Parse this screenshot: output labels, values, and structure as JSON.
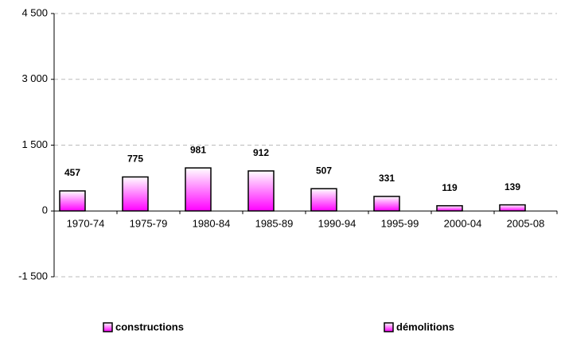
{
  "chart_data": {
    "type": "bar",
    "categories": [
      "1970-74",
      "1975-79",
      "1980-84",
      "1985-89",
      "1990-94",
      "1995-99",
      "2000-04",
      "2005-08"
    ],
    "series": [
      {
        "name": "constructions",
        "color": "#ff00ff",
        "values": [
          457,
          775,
          981,
          912,
          507,
          331,
          119,
          139
        ]
      },
      {
        "name": "démolitions",
        "color": "#ff00ff",
        "values": [
          0,
          0,
          0,
          0,
          0,
          0,
          0,
          0
        ]
      }
    ],
    "ylim": [
      -1500,
      4500
    ],
    "yticks": [
      {
        "value": -1500,
        "label": "-1 500"
      },
      0,
      {
        "value": 1500,
        "label": "1 500"
      },
      {
        "value": 3000,
        "label": "3 000"
      },
      {
        "value": 4500,
        "label": "4 500"
      }
    ],
    "grid": true
  }
}
